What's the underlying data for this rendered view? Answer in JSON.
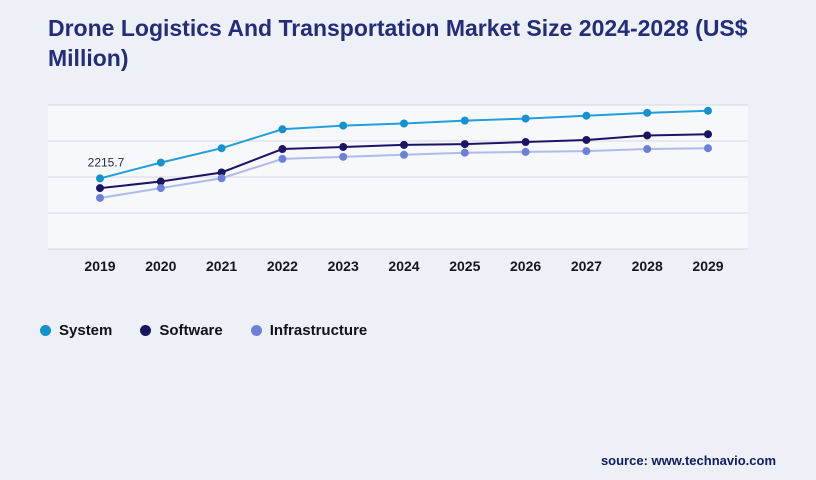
{
  "title": "Drone Logistics And Transportation Market Size 2024-2028 (US$ Million)",
  "source": "source: www.technavio.com",
  "colors": {
    "title": "#232d7a",
    "background": "#edf0f6",
    "plot_band": "#f7f8fc",
    "gridline": "#d7d9e0",
    "tick_label": "#16161e"
  },
  "chart_data": {
    "type": "line",
    "categories": [
      "2019",
      "2020",
      "2021",
      "2022",
      "2023",
      "2024",
      "2025",
      "2026",
      "2027",
      "2028",
      "2029"
    ],
    "series": [
      {
        "name": "System",
        "line_color": "#219fd9",
        "marker_color": "#1691cf",
        "values": [
          2215.7,
          2600,
          2950,
          3410,
          3500,
          3550,
          3620,
          3670,
          3740,
          3810,
          3860
        ]
      },
      {
        "name": "Software",
        "line_color": "#1b1464",
        "marker_color": "#1b1464",
        "values": [
          1980,
          2140,
          2360,
          2930,
          2980,
          3030,
          3050,
          3100,
          3150,
          3260,
          3290
        ]
      },
      {
        "name": "Infrastructure",
        "line_color": "#aebce9",
        "marker_color": "#6d80d8",
        "values": [
          1740,
          1980,
          2220,
          2690,
          2740,
          2790,
          2840,
          2860,
          2880,
          2930,
          2950
        ]
      }
    ],
    "annotation": {
      "text": "2215.7",
      "series": "System",
      "index": 0
    },
    "ylim": [
      500,
      4000
    ],
    "grid": true,
    "gridline_count": 5,
    "legend_position": "bottom",
    "xlabel": "",
    "ylabel": ""
  }
}
